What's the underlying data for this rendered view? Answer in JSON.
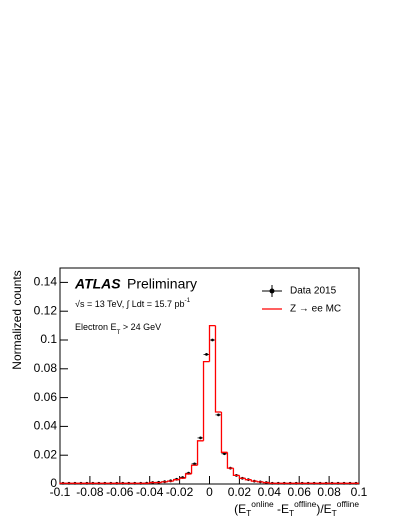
{
  "chart_data": {
    "type": "histogram",
    "experiment": "ATLAS",
    "status": "Preliminary",
    "energy_label": "√s = 13 TeV, ∫ Ldt = 15.7 pb^-1",
    "selection_label": "Electron E_T > 24 GeV",
    "xlabel": "(E_T^online -E_T^offline)/E_T^offline",
    "ylabel": "Normalized counts",
    "xlim": [
      -0.1,
      0.1
    ],
    "ylim": [
      0,
      0.15
    ],
    "xticks": [
      -0.1,
      -0.08,
      -0.06,
      -0.04,
      -0.02,
      0,
      0.02,
      0.04,
      0.06,
      0.08,
      0.1
    ],
    "yticks": [
      0,
      0.02,
      0.04,
      0.06,
      0.08,
      0.1,
      0.12,
      0.14
    ],
    "legend": "upper right",
    "bins": [
      -0.1,
      -0.096,
      -0.092,
      -0.088,
      -0.084,
      -0.08,
      -0.076,
      -0.072,
      -0.068,
      -0.064,
      -0.06,
      -0.056,
      -0.052,
      -0.048,
      -0.044,
      -0.04,
      -0.036,
      -0.032,
      -0.028,
      -0.024,
      -0.02,
      -0.016,
      -0.012,
      -0.008,
      -0.004,
      0,
      0.004,
      0.008,
      0.012,
      0.016,
      0.02,
      0.024,
      0.028,
      0.032,
      0.036,
      0.04,
      0.044,
      0.048,
      0.052,
      0.056,
      0.06,
      0.064,
      0.068,
      0.072,
      0.076,
      0.08,
      0.084,
      0.088,
      0.092,
      0.096,
      0.1
    ],
    "series": [
      {
        "name": "Data 2015",
        "color": "#000000",
        "style": "points",
        "values": [
          0.0005,
          0.0005,
          0.0005,
          0.0005,
          0.0005,
          0.0005,
          0.0005,
          0.0005,
          0.0005,
          0.0005,
          0.0005,
          0.0005,
          0.0005,
          0.0005,
          0.0006,
          0.001,
          0.0012,
          0.0016,
          0.0022,
          0.0033,
          0.0045,
          0.0075,
          0.014,
          0.032,
          0.09,
          0.1,
          0.048,
          0.021,
          0.011,
          0.006,
          0.004,
          0.003,
          0.002,
          0.0015,
          0.001,
          0.0005,
          0.0005,
          0.0005,
          0.0005,
          0.0005,
          0.0005,
          0.0005,
          0.0005,
          0.0005,
          0.0005,
          0.0005,
          0.0005,
          0.0005,
          0.0005,
          0.0005
        ]
      },
      {
        "name": "Z → ee MC",
        "color": "#ff0000",
        "style": "step",
        "values": [
          0.0005,
          0.0005,
          0.0005,
          0.0005,
          0.0005,
          0.0005,
          0.0005,
          0.0005,
          0.0005,
          0.0005,
          0.0005,
          0.0005,
          0.0005,
          0.0005,
          0.0005,
          0.001,
          0.001,
          0.0015,
          0.002,
          0.003,
          0.004,
          0.007,
          0.013,
          0.03,
          0.085,
          0.11,
          0.05,
          0.022,
          0.011,
          0.006,
          0.004,
          0.003,
          0.002,
          0.0015,
          0.001,
          0.0005,
          0.0005,
          0.0005,
          0.0005,
          0.0005,
          0.0005,
          0.0005,
          0.0005,
          0.0005,
          0.0005,
          0.0005,
          0.0005,
          0.0005,
          0.0005,
          0.0005
        ]
      }
    ]
  }
}
